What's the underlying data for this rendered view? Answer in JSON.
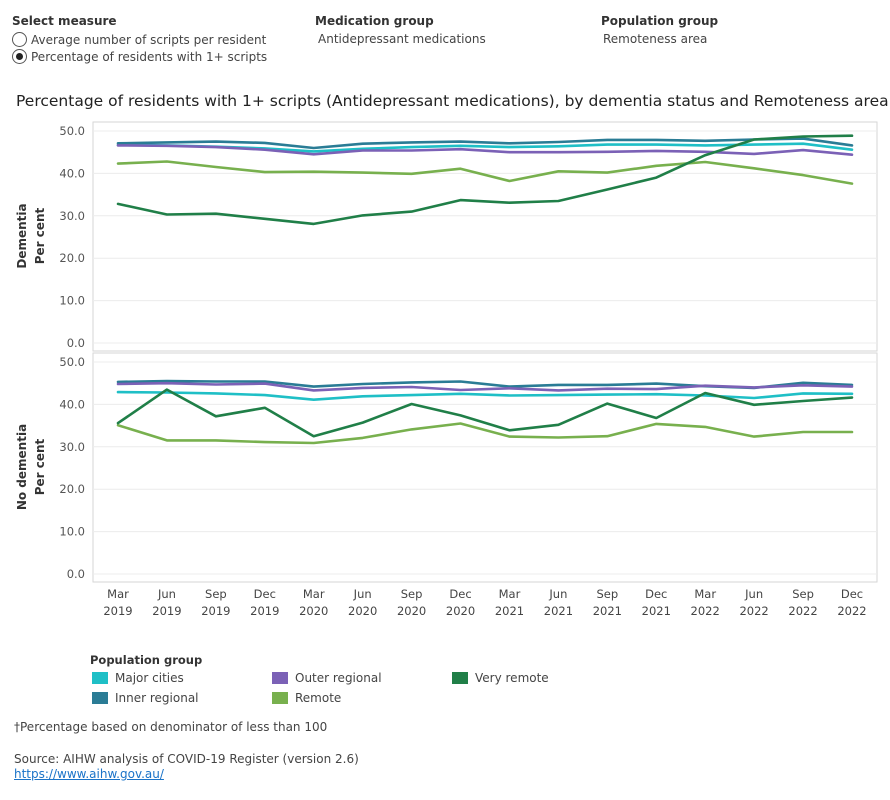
{
  "controls": {
    "measure_title": "Select measure",
    "measure_options": [
      "Average number of scripts per resident",
      "Percentage of residents with 1+ scripts"
    ],
    "measure_selected": 1,
    "medication_title": "Medication group",
    "medication_value": "Antidepressant medications",
    "population_title": "Population group",
    "population_value": "Remoteness area"
  },
  "legend": {
    "title": "Population group",
    "items": [
      {
        "label": "Major cities",
        "color": "#1fbfc6"
      },
      {
        "label": "Inner regional",
        "color": "#2a7c95"
      },
      {
        "label": "Outer regional",
        "color": "#7b61b6"
      },
      {
        "label": "Remote",
        "color": "#78b04e"
      },
      {
        "label": "Very remote",
        "color": "#207f48"
      }
    ]
  },
  "footnote": "†Percentage based on denominator of less than 100",
  "source": "Source: AIHW analysis of COVID-19 Register (version 2.6)",
  "link": "https://www.aihw.gov.au/",
  "chart_data": {
    "type": "line",
    "title": "Percentage of residents with 1+ scripts (Antidepressant medications), by dementia status and Remoteness area",
    "x": [
      "Mar 2019",
      "Jun 2019",
      "Sep 2019",
      "Dec 2019",
      "Mar 2020",
      "Jun 2020",
      "Sep 2020",
      "Dec 2020",
      "Mar 2021",
      "Jun 2021",
      "Sep 2021",
      "Dec 2021",
      "Mar 2022",
      "Jun 2022",
      "Sep 2022",
      "Dec 2022"
    ],
    "xticks": [
      {
        "month": "Mar",
        "year": "2019"
      },
      {
        "month": "Jun",
        "year": "2019"
      },
      {
        "month": "Sep",
        "year": "2019"
      },
      {
        "month": "Dec",
        "year": "2019"
      },
      {
        "month": "Mar",
        "year": "2020"
      },
      {
        "month": "Jun",
        "year": "2020"
      },
      {
        "month": "Sep",
        "year": "2020"
      },
      {
        "month": "Dec",
        "year": "2020"
      },
      {
        "month": "Mar",
        "year": "2021"
      },
      {
        "month": "Jun",
        "year": "2021"
      },
      {
        "month": "Sep",
        "year": "2021"
      },
      {
        "month": "Dec",
        "year": "2021"
      },
      {
        "month": "Mar",
        "year": "2022"
      },
      {
        "month": "Jun",
        "year": "2022"
      },
      {
        "month": "Sep",
        "year": "2022"
      },
      {
        "month": "Dec",
        "year": "2022"
      }
    ],
    "ylim": [
      0,
      50
    ],
    "yticks": [
      "0.0",
      "10.0",
      "20.0",
      "30.0",
      "40.0",
      "50.0"
    ],
    "ylabel": "Per cent",
    "grid": true,
    "panels": [
      {
        "name": "Dementia",
        "series": [
          {
            "name": "Major cities",
            "values": [
              46.7,
              46.6,
              46.3,
              45.9,
              45.2,
              45.8,
              46.2,
              46.5,
              46.2,
              46.4,
              46.8,
              46.8,
              46.6,
              46.8,
              47.0,
              45.6
            ]
          },
          {
            "name": "Inner regional",
            "values": [
              47.1,
              47.3,
              47.5,
              47.2,
              46.0,
              47.0,
              47.3,
              47.5,
              47.1,
              47.4,
              47.9,
              47.9,
              47.7,
              48.0,
              48.2,
              46.6
            ]
          },
          {
            "name": "Outer regional",
            "values": [
              46.6,
              46.5,
              46.2,
              45.6,
              44.5,
              45.4,
              45.4,
              45.7,
              45.0,
              45.0,
              45.1,
              45.3,
              45.1,
              44.6,
              45.5,
              44.4
            ]
          },
          {
            "name": "Remote",
            "values": [
              42.3,
              42.8,
              41.5,
              40.3,
              40.4,
              40.2,
              39.9,
              41.1,
              38.2,
              40.5,
              40.2,
              41.8,
              42.7,
              41.2,
              39.6,
              37.6
            ]
          },
          {
            "name": "Very remote",
            "values": [
              32.8,
              30.3,
              30.5,
              29.3,
              28.1,
              30.1,
              31.0,
              33.7,
              33.1,
              33.5,
              36.2,
              39.0,
              44.3,
              48.0,
              48.7,
              48.9
            ]
          }
        ]
      },
      {
        "name": "No dementia",
        "series": [
          {
            "name": "Major cities",
            "values": [
              42.9,
              42.8,
              42.6,
              42.2,
              41.1,
              41.9,
              42.2,
              42.5,
              42.1,
              42.2,
              42.3,
              42.4,
              42.1,
              41.5,
              42.6,
              42.5
            ]
          },
          {
            "name": "Inner regional",
            "values": [
              45.3,
              45.5,
              45.4,
              45.4,
              44.2,
              44.8,
              45.2,
              45.4,
              44.2,
              44.6,
              44.6,
              44.9,
              44.3,
              43.9,
              45.1,
              44.6
            ]
          },
          {
            "name": "Outer regional",
            "values": [
              44.8,
              45.0,
              44.7,
              44.9,
              43.3,
              43.9,
              44.1,
              43.4,
              43.8,
              43.3,
              43.7,
              43.6,
              44.4,
              44.0,
              44.5,
              44.2
            ]
          },
          {
            "name": "Remote",
            "values": [
              35.1,
              31.5,
              31.5,
              31.1,
              30.9,
              32.1,
              34.1,
              35.5,
              32.4,
              32.2,
              32.5,
              35.4,
              34.7,
              32.4,
              33.5,
              33.5
            ]
          },
          {
            "name": "Very remote",
            "values": [
              35.6,
              43.5,
              37.2,
              39.2,
              32.5,
              35.7,
              40.1,
              37.4,
              33.9,
              35.2,
              40.2,
              36.8,
              42.7,
              39.9,
              40.8,
              41.6
            ]
          }
        ]
      }
    ]
  }
}
